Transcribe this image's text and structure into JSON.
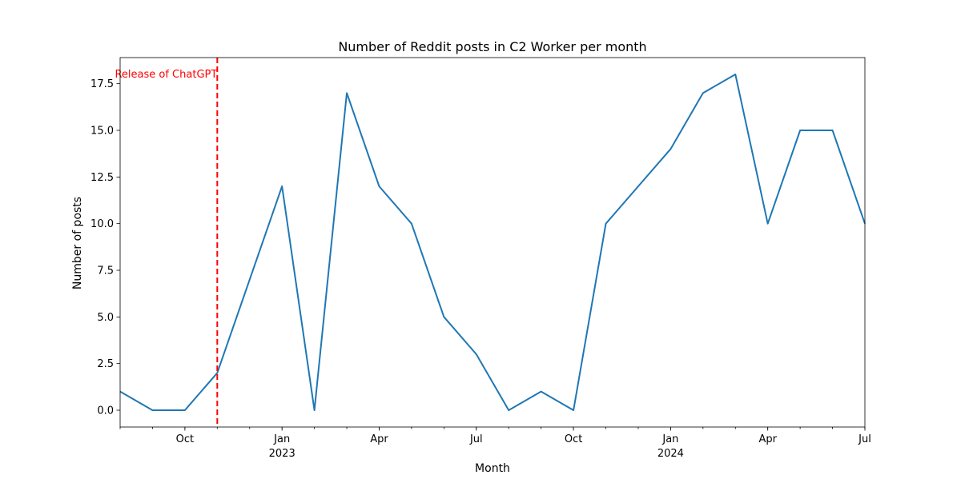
{
  "chart_data": {
    "type": "line",
    "title": "Number of Reddit posts in C2 Worker per month",
    "xlabel": "Month",
    "ylabel": "Number of posts",
    "ylim": [
      -0.9,
      18.9
    ],
    "xlim": [
      "2022-08",
      "2024-07"
    ],
    "grid": false,
    "x": [
      "2022-08",
      "2022-09",
      "2022-10",
      "2022-11",
      "2022-12",
      "2023-01",
      "2023-02",
      "2023-03",
      "2023-04",
      "2023-05",
      "2023-06",
      "2023-07",
      "2023-08",
      "2023-09",
      "2023-10",
      "2023-11",
      "2023-12",
      "2024-01",
      "2024-02",
      "2024-03",
      "2024-04",
      "2024-05",
      "2024-06",
      "2024-07"
    ],
    "series": [
      {
        "color": "#1f77b4",
        "values": [
          1,
          0,
          0,
          2,
          7,
          12,
          0,
          17,
          12,
          10,
          5,
          3,
          0,
          1,
          0,
          10,
          12,
          14,
          17,
          18,
          10,
          15,
          15,
          10
        ]
      }
    ],
    "y_ticks": [
      "0.0",
      "2.5",
      "5.0",
      "7.5",
      "10.0",
      "12.5",
      "15.0",
      "17.5"
    ],
    "x_ticks": [
      {
        "month": "2022-10",
        "label": "Oct",
        "sub": ""
      },
      {
        "month": "2023-01",
        "label": "Jan",
        "sub": "2023"
      },
      {
        "month": "2023-04",
        "label": "Apr",
        "sub": ""
      },
      {
        "month": "2023-07",
        "label": "Jul",
        "sub": ""
      },
      {
        "month": "2023-10",
        "label": "Oct",
        "sub": ""
      },
      {
        "month": "2024-01",
        "label": "Jan",
        "sub": "2024"
      },
      {
        "month": "2024-04",
        "label": "Apr",
        "sub": ""
      },
      {
        "month": "2024-07",
        "label": "Jul",
        "sub": ""
      }
    ],
    "annotations": [
      {
        "type": "vline",
        "month": "2022-11",
        "color": "#ff0000",
        "style": "dashed",
        "text": "Release of ChatGPT"
      }
    ]
  }
}
